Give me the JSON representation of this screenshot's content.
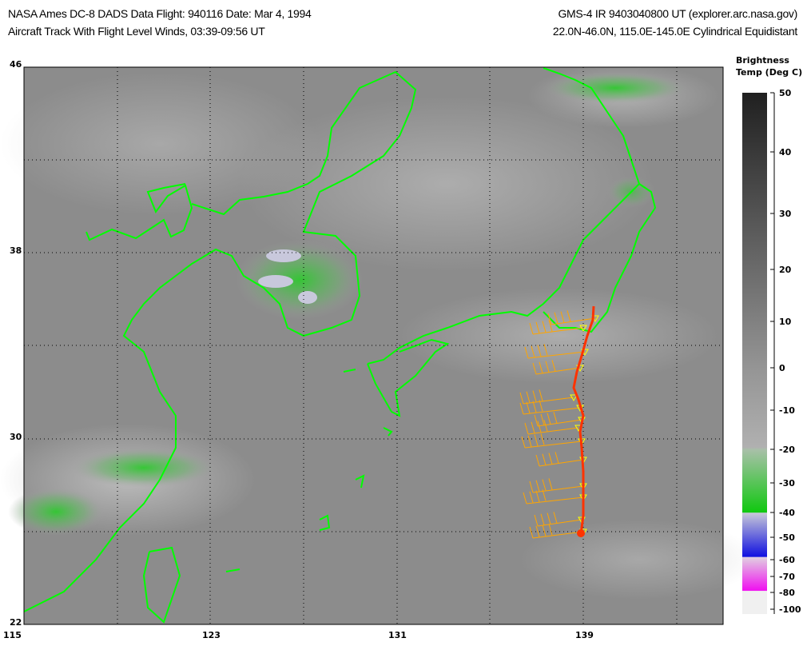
{
  "header": {
    "left_line1": "NASA Ames DC-8 DADS Data  Flight: 940116  Date: Mar 4, 1994",
    "left_line2": "Aircraft Track With Flight Level Winds, 03:39-09:56 UT",
    "right_line1": "GMS-4 IR 9403040800 UT (explorer.arc.nasa.gov)",
    "right_line2": "22.0N-46.0N, 115.0E-145.0E Cylindrical Equidistant"
  },
  "map": {
    "lon_range": [
      115,
      145
    ],
    "lat_range": [
      22,
      46
    ],
    "lon_labels": [
      "115",
      "123",
      "131",
      "139"
    ],
    "lat_labels": [
      "46",
      "38",
      "30",
      "22"
    ],
    "coastline_color": "#00ff00",
    "track_color": "#ff3300",
    "wind_barb_color": "#ffa500"
  },
  "colorbar": {
    "title_line1": "Brightness",
    "title_line2": "Temp (Deg C)",
    "ticks": [
      "50",
      "40",
      "30",
      "20",
      "10",
      "0",
      "-10",
      "-20",
      "-30",
      "-40",
      "-50",
      "-60",
      "-70",
      "-80",
      "-100"
    ]
  }
}
